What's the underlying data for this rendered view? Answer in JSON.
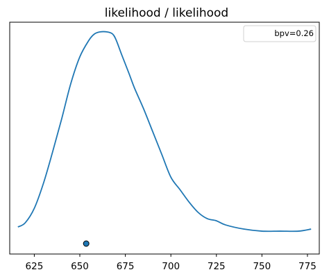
{
  "chart_data": {
    "type": "line",
    "title": "likelihood / likelihood",
    "xlabel": "",
    "ylabel": "",
    "xlim": [
      611.5,
      781.5
    ],
    "ylim": [
      0,
      1
    ],
    "x_ticks": [
      625,
      650,
      675,
      700,
      725,
      750,
      775
    ],
    "x_tick_labels": [
      "625",
      "650",
      "675",
      "700",
      "725",
      "750",
      "775"
    ],
    "y_ticks_shown": false,
    "grid": false,
    "legend": {
      "placement": "top-right",
      "entries": [
        "bpv=0.26"
      ]
    },
    "series": [
      {
        "x": [
          616,
          620,
          625,
          630,
          635,
          640,
          645,
          650,
          655,
          658,
          661,
          665,
          668,
          670,
          673,
          677,
          680,
          685,
          690,
          695,
          700,
          705,
          710,
          715,
          720,
          725,
          730,
          740,
          750,
          760,
          770,
          777
        ],
        "y": [
          0.06,
          0.08,
          0.15,
          0.27,
          0.42,
          0.58,
          0.75,
          0.88,
          0.96,
          0.99,
          1.0,
          1.0,
          0.99,
          0.96,
          0.89,
          0.8,
          0.73,
          0.63,
          0.52,
          0.41,
          0.3,
          0.24,
          0.18,
          0.13,
          0.1,
          0.09,
          0.07,
          0.05,
          0.04,
          0.04,
          0.04,
          0.05
        ],
        "color": "#1f77b4"
      }
    ],
    "observed_point": {
      "x": 653.5,
      "y": 0.0
    }
  }
}
